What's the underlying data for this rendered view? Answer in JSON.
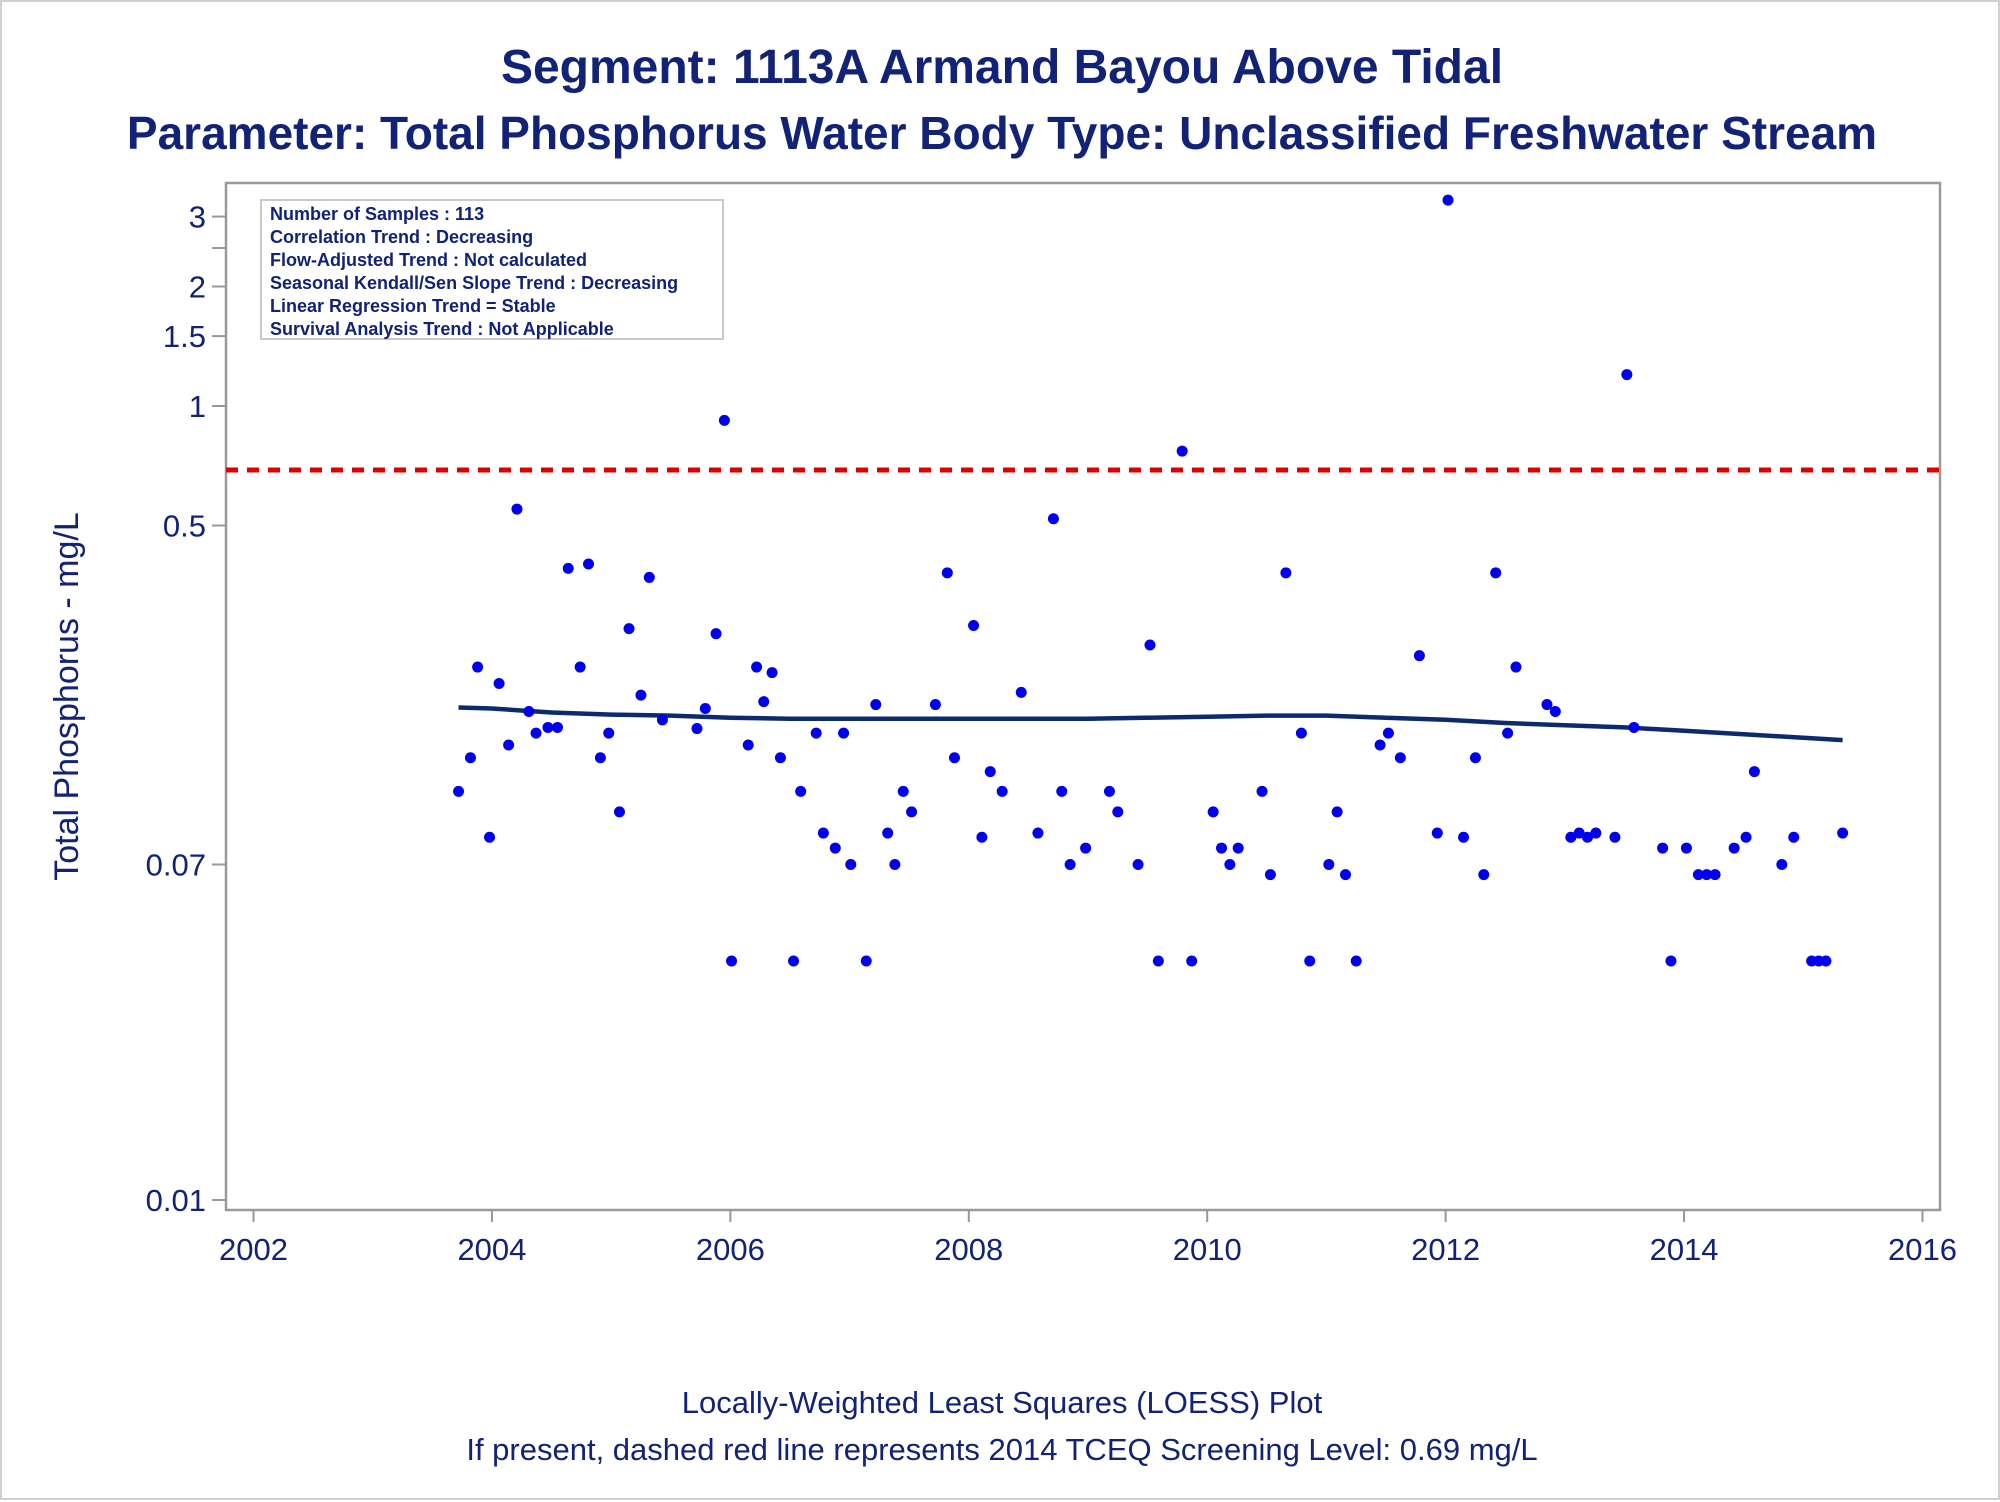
{
  "titles": {
    "line1": "Segment: 1113A  Armand Bayou Above Tidal",
    "line2": "Parameter: Total Phosphorus   Water Body Type: Unclassified Freshwater Stream"
  },
  "footnotes": {
    "line1": "Locally-Weighted Least Squares (LOESS) Plot",
    "line2": "If present, dashed red line represents 2014 TCEQ Screening Level: 0.69 mg/L"
  },
  "stats_box": [
    "Number of Samples : 113",
    "Correlation Trend : Decreasing",
    "Flow-Adjusted Trend : Not calculated",
    "Seasonal Kendall/Sen Slope Trend : Decreasing",
    "Linear Regression Trend = Stable",
    "Survival Analysis Trend : Not Applicable"
  ],
  "colors": {
    "text": "#112277",
    "points": "#0000ee",
    "loess": "#0d2a6e",
    "screening_line": "#dd0000",
    "frame": "#999999"
  },
  "chart_data": {
    "type": "scatter",
    "xlabel": "",
    "ylabel": "Total Phosphorus - mg/L",
    "y_scale": "log",
    "xlim": [
      2001.9,
      2016.0
    ],
    "ylim": [
      0.01,
      3.8
    ],
    "x_ticks": [
      2002,
      2004,
      2006,
      2008,
      2010,
      2012,
      2014,
      2016
    ],
    "x_tick_labels": [
      "2002",
      "2004",
      "2006",
      "2008",
      "2010",
      "2012",
      "2014",
      "2016"
    ],
    "y_ticks": [
      0.01,
      0.07,
      0.5,
      1,
      1.5,
      2,
      3
    ],
    "y_tick_labels": [
      "0.01",
      "0.07",
      "0.5",
      "1",
      "1.5",
      "2",
      "3"
    ],
    "reference_line": {
      "y": 0.69,
      "style": "dashed"
    },
    "series": [
      {
        "kind": "points",
        "points": [
          [
            2003.72,
            0.107
          ],
          [
            2003.82,
            0.13
          ],
          [
            2003.88,
            0.22
          ],
          [
            2003.98,
            0.082
          ],
          [
            2004.06,
            0.2
          ],
          [
            2004.14,
            0.14
          ],
          [
            2004.21,
            0.55
          ],
          [
            2004.31,
            0.17
          ],
          [
            2004.37,
            0.15
          ],
          [
            2004.47,
            0.155
          ],
          [
            2004.55,
            0.155
          ],
          [
            2004.64,
            0.39
          ],
          [
            2004.74,
            0.22
          ],
          [
            2004.81,
            0.4
          ],
          [
            2004.91,
            0.13
          ],
          [
            2004.98,
            0.15
          ],
          [
            2005.07,
            0.095
          ],
          [
            2005.15,
            0.275
          ],
          [
            2005.25,
            0.187
          ],
          [
            2005.32,
            0.37
          ],
          [
            2005.43,
            0.162
          ],
          [
            2005.72,
            0.154
          ],
          [
            2005.79,
            0.173
          ],
          [
            2005.88,
            0.267
          ],
          [
            2005.95,
            0.92
          ],
          [
            2006.01,
            0.04
          ],
          [
            2006.15,
            0.14
          ],
          [
            2006.22,
            0.22
          ],
          [
            2006.28,
            0.18
          ],
          [
            2006.35,
            0.213
          ],
          [
            2006.42,
            0.13
          ],
          [
            2006.53,
            0.04
          ],
          [
            2006.59,
            0.107
          ],
          [
            2006.72,
            0.15
          ],
          [
            2006.78,
            0.084
          ],
          [
            2006.88,
            0.077
          ],
          [
            2006.95,
            0.15
          ],
          [
            2007.01,
            0.07
          ],
          [
            2007.14,
            0.04
          ],
          [
            2007.22,
            0.177
          ],
          [
            2007.32,
            0.084
          ],
          [
            2007.38,
            0.07
          ],
          [
            2007.45,
            0.107
          ],
          [
            2007.52,
            0.095
          ],
          [
            2007.72,
            0.177
          ],
          [
            2007.82,
            0.38
          ],
          [
            2007.88,
            0.13
          ],
          [
            2008.04,
            0.28
          ],
          [
            2008.11,
            0.082
          ],
          [
            2008.18,
            0.12
          ],
          [
            2008.28,
            0.107
          ],
          [
            2008.44,
            0.19
          ],
          [
            2008.58,
            0.084
          ],
          [
            2008.71,
            0.52
          ],
          [
            2008.78,
            0.107
          ],
          [
            2008.85,
            0.07
          ],
          [
            2008.98,
            0.077
          ],
          [
            2009.18,
            0.107
          ],
          [
            2009.25,
            0.095
          ],
          [
            2009.42,
            0.07
          ],
          [
            2009.52,
            0.25
          ],
          [
            2009.59,
            0.04
          ],
          [
            2009.79,
            0.77
          ],
          [
            2009.87,
            0.04
          ],
          [
            2010.05,
            0.095
          ],
          [
            2010.12,
            0.077
          ],
          [
            2010.19,
            0.07
          ],
          [
            2010.26,
            0.077
          ],
          [
            2010.46,
            0.107
          ],
          [
            2010.53,
            0.066
          ],
          [
            2010.66,
            0.38
          ],
          [
            2010.79,
            0.15
          ],
          [
            2010.86,
            0.04
          ],
          [
            2011.02,
            0.07
          ],
          [
            2011.09,
            0.095
          ],
          [
            2011.16,
            0.066
          ],
          [
            2011.25,
            0.04
          ],
          [
            2011.45,
            0.14
          ],
          [
            2011.52,
            0.15
          ],
          [
            2011.62,
            0.13
          ],
          [
            2011.78,
            0.235
          ],
          [
            2011.93,
            0.084
          ],
          [
            2012.02,
            3.3
          ],
          [
            2012.15,
            0.082
          ],
          [
            2012.25,
            0.13
          ],
          [
            2012.32,
            0.066
          ],
          [
            2012.42,
            0.38
          ],
          [
            2012.52,
            0.15
          ],
          [
            2012.59,
            0.22
          ],
          [
            2012.85,
            0.177
          ],
          [
            2012.92,
            0.17
          ],
          [
            2013.05,
            0.082
          ],
          [
            2013.12,
            0.084
          ],
          [
            2013.19,
            0.082
          ],
          [
            2013.26,
            0.084
          ],
          [
            2013.42,
            0.082
          ],
          [
            2013.52,
            1.2
          ],
          [
            2013.58,
            0.155
          ],
          [
            2013.82,
            0.077
          ],
          [
            2013.89,
            0.04
          ],
          [
            2014.02,
            0.077
          ],
          [
            2014.12,
            0.066
          ],
          [
            2014.19,
            0.066
          ],
          [
            2014.26,
            0.066
          ],
          [
            2014.42,
            0.077
          ],
          [
            2014.52,
            0.082
          ],
          [
            2014.59,
            0.12
          ],
          [
            2014.82,
            0.07
          ],
          [
            2014.92,
            0.082
          ],
          [
            2015.07,
            0.04
          ],
          [
            2015.13,
            0.04
          ],
          [
            2015.19,
            0.04
          ],
          [
            2015.33,
            0.084
          ]
        ]
      },
      {
        "kind": "loess",
        "points": [
          [
            2003.72,
            0.174
          ],
          [
            2004.0,
            0.173
          ],
          [
            2004.5,
            0.169
          ],
          [
            2005.0,
            0.167
          ],
          [
            2005.5,
            0.166
          ],
          [
            2006.0,
            0.164
          ],
          [
            2006.5,
            0.163
          ],
          [
            2007.0,
            0.163
          ],
          [
            2007.5,
            0.163
          ],
          [
            2008.0,
            0.163
          ],
          [
            2008.5,
            0.163
          ],
          [
            2009.0,
            0.163
          ],
          [
            2009.5,
            0.164
          ],
          [
            2010.0,
            0.165
          ],
          [
            2010.5,
            0.166
          ],
          [
            2011.0,
            0.166
          ],
          [
            2011.5,
            0.164
          ],
          [
            2012.0,
            0.162
          ],
          [
            2012.5,
            0.159
          ],
          [
            2013.0,
            0.157
          ],
          [
            2013.5,
            0.155
          ],
          [
            2014.0,
            0.152
          ],
          [
            2014.5,
            0.149
          ],
          [
            2015.0,
            0.146
          ],
          [
            2015.33,
            0.144
          ]
        ]
      }
    ]
  }
}
